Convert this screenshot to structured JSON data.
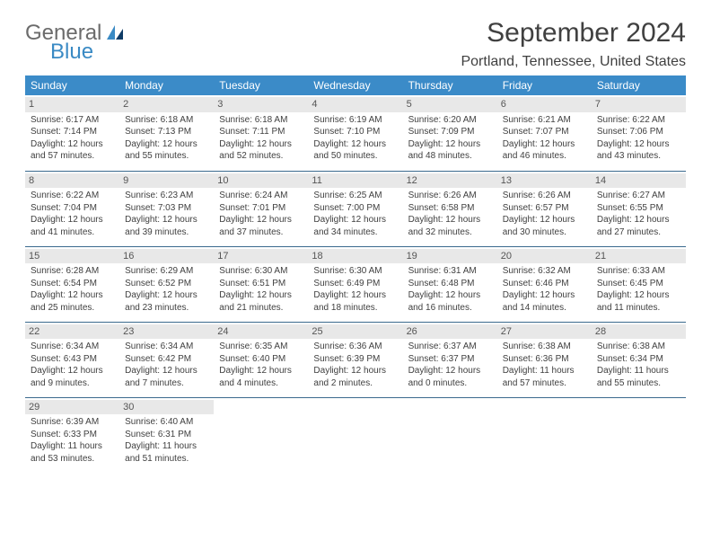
{
  "logo": {
    "line1": "General",
    "line2": "Blue"
  },
  "title": "September 2024",
  "location": "Portland, Tennessee, United States",
  "colors": {
    "header_bg": "#3b8bc8",
    "header_text": "#ffffff",
    "rule": "#3b6a8e",
    "daybar": "#e8e8e8",
    "logo_gray": "#6b6b6b",
    "logo_blue": "#3a8ac4",
    "body_text": "#404040",
    "background": "#ffffff"
  },
  "typography": {
    "title_fontsize": 30,
    "location_fontsize": 16,
    "weekday_fontsize": 12,
    "cell_fontsize": 10,
    "daynum_fontsize": 11,
    "font_family": "Arial"
  },
  "weekdays": [
    "Sunday",
    "Monday",
    "Tuesday",
    "Wednesday",
    "Thursday",
    "Friday",
    "Saturday"
  ],
  "weeks": [
    [
      {
        "day": "1",
        "sunrise": "Sunrise: 6:17 AM",
        "sunset": "Sunset: 7:14 PM",
        "d1": "Daylight: 12 hours",
        "d2": "and 57 minutes."
      },
      {
        "day": "2",
        "sunrise": "Sunrise: 6:18 AM",
        "sunset": "Sunset: 7:13 PM",
        "d1": "Daylight: 12 hours",
        "d2": "and 55 minutes."
      },
      {
        "day": "3",
        "sunrise": "Sunrise: 6:18 AM",
        "sunset": "Sunset: 7:11 PM",
        "d1": "Daylight: 12 hours",
        "d2": "and 52 minutes."
      },
      {
        "day": "4",
        "sunrise": "Sunrise: 6:19 AM",
        "sunset": "Sunset: 7:10 PM",
        "d1": "Daylight: 12 hours",
        "d2": "and 50 minutes."
      },
      {
        "day": "5",
        "sunrise": "Sunrise: 6:20 AM",
        "sunset": "Sunset: 7:09 PM",
        "d1": "Daylight: 12 hours",
        "d2": "and 48 minutes."
      },
      {
        "day": "6",
        "sunrise": "Sunrise: 6:21 AM",
        "sunset": "Sunset: 7:07 PM",
        "d1": "Daylight: 12 hours",
        "d2": "and 46 minutes."
      },
      {
        "day": "7",
        "sunrise": "Sunrise: 6:22 AM",
        "sunset": "Sunset: 7:06 PM",
        "d1": "Daylight: 12 hours",
        "d2": "and 43 minutes."
      }
    ],
    [
      {
        "day": "8",
        "sunrise": "Sunrise: 6:22 AM",
        "sunset": "Sunset: 7:04 PM",
        "d1": "Daylight: 12 hours",
        "d2": "and 41 minutes."
      },
      {
        "day": "9",
        "sunrise": "Sunrise: 6:23 AM",
        "sunset": "Sunset: 7:03 PM",
        "d1": "Daylight: 12 hours",
        "d2": "and 39 minutes."
      },
      {
        "day": "10",
        "sunrise": "Sunrise: 6:24 AM",
        "sunset": "Sunset: 7:01 PM",
        "d1": "Daylight: 12 hours",
        "d2": "and 37 minutes."
      },
      {
        "day": "11",
        "sunrise": "Sunrise: 6:25 AM",
        "sunset": "Sunset: 7:00 PM",
        "d1": "Daylight: 12 hours",
        "d2": "and 34 minutes."
      },
      {
        "day": "12",
        "sunrise": "Sunrise: 6:26 AM",
        "sunset": "Sunset: 6:58 PM",
        "d1": "Daylight: 12 hours",
        "d2": "and 32 minutes."
      },
      {
        "day": "13",
        "sunrise": "Sunrise: 6:26 AM",
        "sunset": "Sunset: 6:57 PM",
        "d1": "Daylight: 12 hours",
        "d2": "and 30 minutes."
      },
      {
        "day": "14",
        "sunrise": "Sunrise: 6:27 AM",
        "sunset": "Sunset: 6:55 PM",
        "d1": "Daylight: 12 hours",
        "d2": "and 27 minutes."
      }
    ],
    [
      {
        "day": "15",
        "sunrise": "Sunrise: 6:28 AM",
        "sunset": "Sunset: 6:54 PM",
        "d1": "Daylight: 12 hours",
        "d2": "and 25 minutes."
      },
      {
        "day": "16",
        "sunrise": "Sunrise: 6:29 AM",
        "sunset": "Sunset: 6:52 PM",
        "d1": "Daylight: 12 hours",
        "d2": "and 23 minutes."
      },
      {
        "day": "17",
        "sunrise": "Sunrise: 6:30 AM",
        "sunset": "Sunset: 6:51 PM",
        "d1": "Daylight: 12 hours",
        "d2": "and 21 minutes."
      },
      {
        "day": "18",
        "sunrise": "Sunrise: 6:30 AM",
        "sunset": "Sunset: 6:49 PM",
        "d1": "Daylight: 12 hours",
        "d2": "and 18 minutes."
      },
      {
        "day": "19",
        "sunrise": "Sunrise: 6:31 AM",
        "sunset": "Sunset: 6:48 PM",
        "d1": "Daylight: 12 hours",
        "d2": "and 16 minutes."
      },
      {
        "day": "20",
        "sunrise": "Sunrise: 6:32 AM",
        "sunset": "Sunset: 6:46 PM",
        "d1": "Daylight: 12 hours",
        "d2": "and 14 minutes."
      },
      {
        "day": "21",
        "sunrise": "Sunrise: 6:33 AM",
        "sunset": "Sunset: 6:45 PM",
        "d1": "Daylight: 12 hours",
        "d2": "and 11 minutes."
      }
    ],
    [
      {
        "day": "22",
        "sunrise": "Sunrise: 6:34 AM",
        "sunset": "Sunset: 6:43 PM",
        "d1": "Daylight: 12 hours",
        "d2": "and 9 minutes."
      },
      {
        "day": "23",
        "sunrise": "Sunrise: 6:34 AM",
        "sunset": "Sunset: 6:42 PM",
        "d1": "Daylight: 12 hours",
        "d2": "and 7 minutes."
      },
      {
        "day": "24",
        "sunrise": "Sunrise: 6:35 AM",
        "sunset": "Sunset: 6:40 PM",
        "d1": "Daylight: 12 hours",
        "d2": "and 4 minutes."
      },
      {
        "day": "25",
        "sunrise": "Sunrise: 6:36 AM",
        "sunset": "Sunset: 6:39 PM",
        "d1": "Daylight: 12 hours",
        "d2": "and 2 minutes."
      },
      {
        "day": "26",
        "sunrise": "Sunrise: 6:37 AM",
        "sunset": "Sunset: 6:37 PM",
        "d1": "Daylight: 12 hours",
        "d2": "and 0 minutes."
      },
      {
        "day": "27",
        "sunrise": "Sunrise: 6:38 AM",
        "sunset": "Sunset: 6:36 PM",
        "d1": "Daylight: 11 hours",
        "d2": "and 57 minutes."
      },
      {
        "day": "28",
        "sunrise": "Sunrise: 6:38 AM",
        "sunset": "Sunset: 6:34 PM",
        "d1": "Daylight: 11 hours",
        "d2": "and 55 minutes."
      }
    ],
    [
      {
        "day": "29",
        "sunrise": "Sunrise: 6:39 AM",
        "sunset": "Sunset: 6:33 PM",
        "d1": "Daylight: 11 hours",
        "d2": "and 53 minutes."
      },
      {
        "day": "30",
        "sunrise": "Sunrise: 6:40 AM",
        "sunset": "Sunset: 6:31 PM",
        "d1": "Daylight: 11 hours",
        "d2": "and 51 minutes."
      },
      null,
      null,
      null,
      null,
      null
    ]
  ]
}
